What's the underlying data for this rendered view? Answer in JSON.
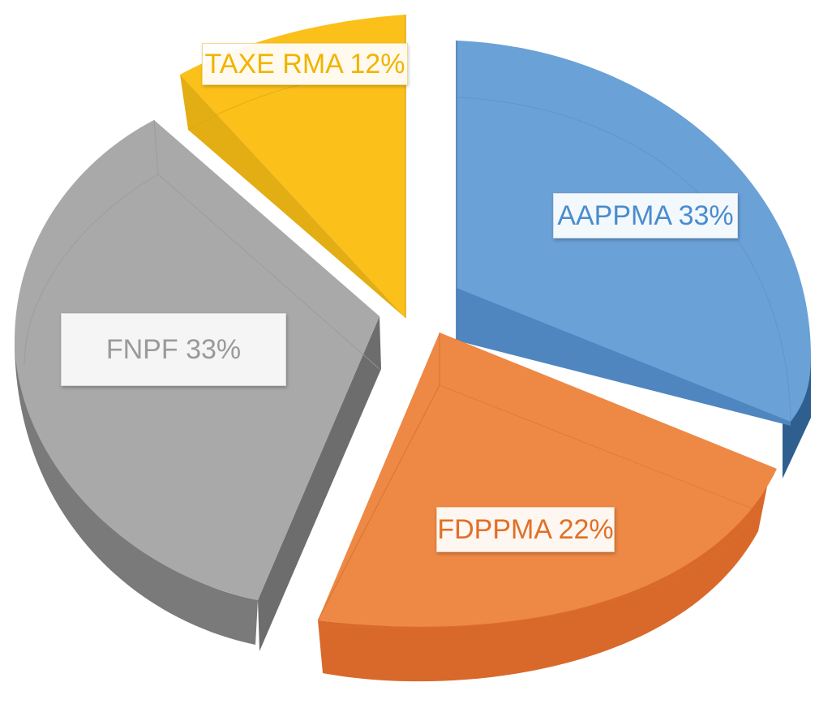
{
  "colors": {
    "aappma": "#5b9bd5",
    "fdppma": "#ed7d31",
    "fnpf": "#a5a5a5",
    "taxe": "#ffc000"
  },
  "chart_data": {
    "type": "pie",
    "title": "",
    "categories": [
      "AAPPMA",
      "FDPPMA",
      "FNPF",
      "TAXE RMA"
    ],
    "values": [
      33,
      22,
      33,
      12
    ],
    "unit": "%",
    "data_labels": [
      "AAPPMA 33%",
      "FDPPMA 22%",
      "FNPF 33%",
      "TAXE RMA 12%"
    ],
    "style": "3D exploded pie",
    "legend": "none"
  }
}
